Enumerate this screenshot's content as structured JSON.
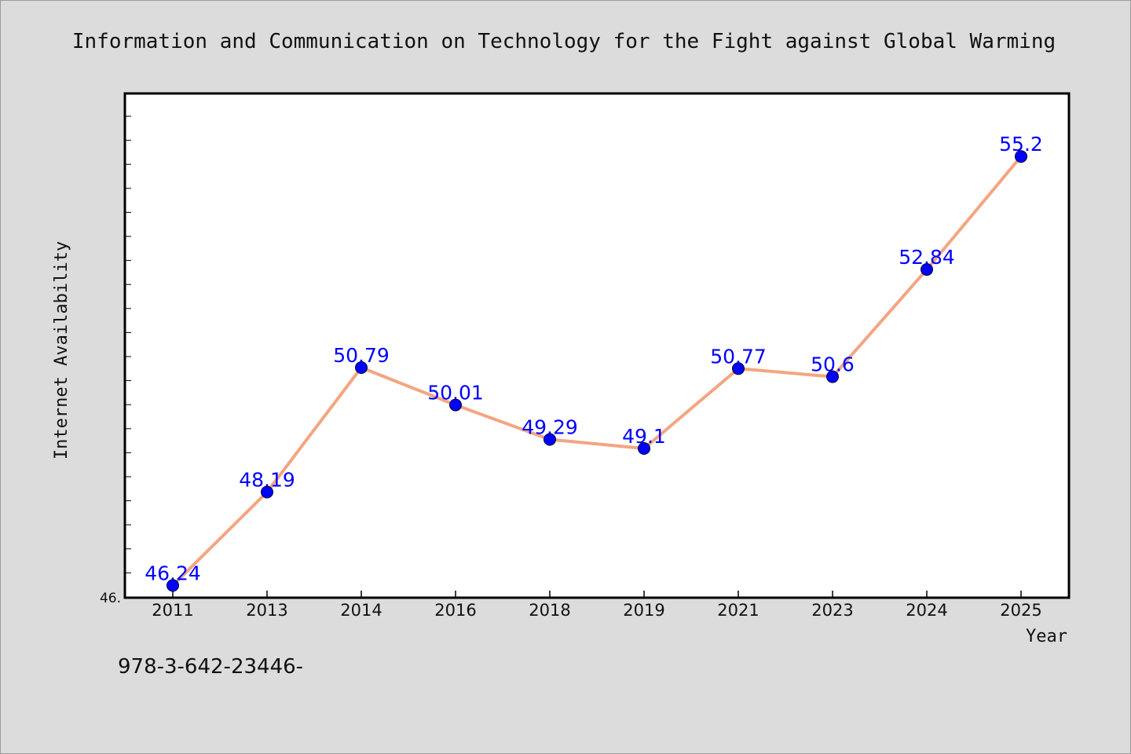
{
  "chart_data": {
    "type": "line",
    "title": "Information and Communication on Technology for the Fight against Global Warming",
    "xlabel": "Year",
    "ylabel": "Internet Availability",
    "categories": [
      "2011",
      "2013",
      "2014",
      "2016",
      "2018",
      "2019",
      "2021",
      "2023",
      "2024",
      "2025"
    ],
    "series": [
      {
        "values": [
          46.24,
          48.19,
          50.79,
          50.01,
          49.29,
          49.1,
          50.77,
          50.6,
          52.84,
          55.2
        ],
        "labels": [
          "46.24",
          "48.19",
          "50.79",
          "50.01",
          "49.29",
          "49.1",
          "50.77",
          "50.6",
          "52.84",
          "55.2"
        ]
      }
    ],
    "ylim": [
      46.0,
      56.5
    ],
    "y_tick_labels": [
      "46."
    ],
    "grid": false,
    "legend": "none",
    "colors": {
      "line": "#f4a582",
      "marker": "#0000ff",
      "data_label": "#0000ff",
      "plot_background": "#ffffff",
      "page_background": "#dcdcdc"
    }
  },
  "footer": {
    "isbn_text": "978-3-642-23446-"
  }
}
